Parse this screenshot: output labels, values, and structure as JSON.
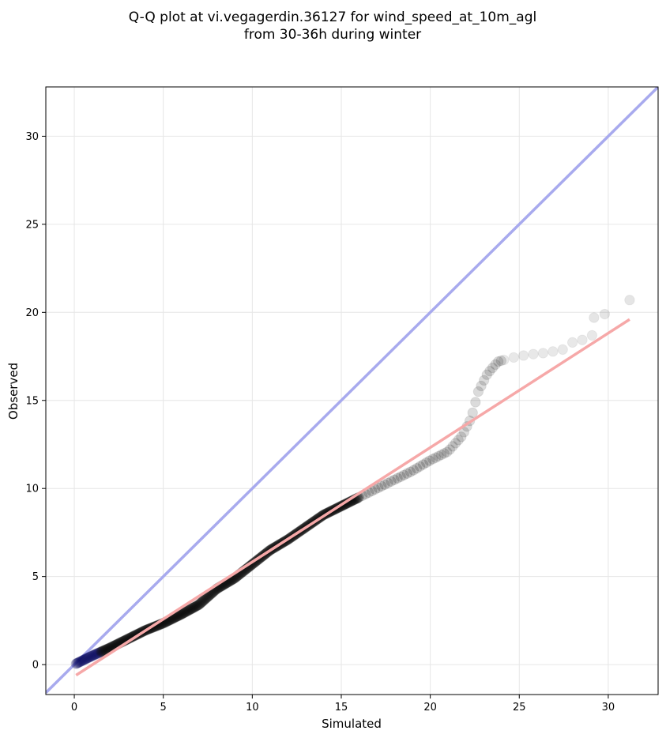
{
  "chart_data": {
    "type": "scatter",
    "title_lines": [
      "Q-Q plot at vi.vegagerdin.36127 for wind_speed_at_10m_agl",
      "from 30-36h during winter"
    ],
    "xlabel": "Simulated",
    "ylabel": "Observed",
    "xlim": [
      -1.6,
      32.8
    ],
    "ylim": [
      -1.7,
      32.8
    ],
    "xticks": [
      0,
      5,
      10,
      15,
      20,
      25,
      30
    ],
    "yticks": [
      0,
      5,
      10,
      15,
      20,
      25,
      30
    ],
    "grid": true,
    "identity_line": {
      "from": [
        -1.6,
        -1.6
      ],
      "to": [
        32.8,
        32.8
      ],
      "color": "#a8aaee"
    },
    "fit_line": {
      "from": [
        0.1,
        -0.6
      ],
      "to": [
        31.2,
        19.6
      ],
      "color": "#f6a8a8"
    },
    "quantile_path": [
      [
        0.1,
        0.05
      ],
      [
        0.5,
        0.25
      ],
      [
        1.0,
        0.5
      ],
      [
        2.0,
        0.95
      ],
      [
        3.0,
        1.45
      ],
      [
        4.0,
        1.95
      ],
      [
        5.0,
        2.35
      ],
      [
        6.0,
        2.85
      ],
      [
        7.0,
        3.4
      ],
      [
        8.0,
        4.3
      ],
      [
        9.0,
        4.9
      ],
      [
        10.0,
        5.7
      ],
      [
        11.0,
        6.5
      ],
      [
        12.0,
        7.1
      ],
      [
        13.0,
        7.8
      ],
      [
        14.0,
        8.5
      ],
      [
        15.0,
        9.0
      ],
      [
        16.0,
        9.5
      ],
      [
        17.0,
        10.0
      ],
      [
        18.0,
        10.5
      ],
      [
        19.0,
        11.0
      ],
      [
        20.0,
        11.6
      ],
      [
        21.0,
        12.1
      ],
      [
        21.8,
        13.0
      ],
      [
        22.3,
        14.0
      ],
      [
        22.7,
        15.5
      ],
      [
        23.2,
        16.5
      ],
      [
        23.8,
        17.2
      ],
      [
        24.5,
        17.4
      ],
      [
        25.5,
        17.6
      ],
      [
        26.5,
        17.7
      ],
      [
        27.5,
        17.9
      ],
      [
        28.0,
        18.3
      ],
      [
        28.8,
        18.5
      ],
      [
        29.1,
        18.7
      ]
    ],
    "tail_points": [
      [
        29.2,
        19.7
      ],
      [
        29.8,
        19.9
      ],
      [
        31.2,
        20.7
      ]
    ],
    "point_color": "#000000",
    "low_end_point_color": "#0a0a60"
  }
}
